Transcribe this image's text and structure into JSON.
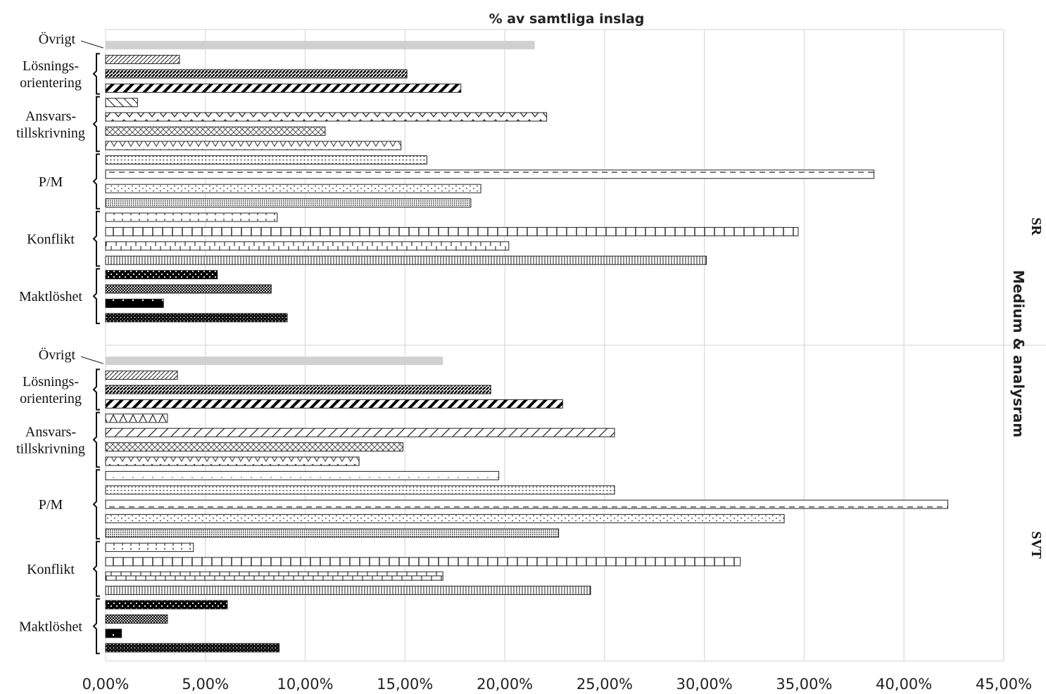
{
  "chart_data": {
    "type": "bar",
    "orientation": "horizontal",
    "title": "% av samtliga inslag",
    "xlim": [
      0,
      45
    ],
    "xticks": [
      "0,00%",
      "5,00%",
      "10,00%",
      "15,00%",
      "20,00%",
      "25,00%",
      "30,00%",
      "35,00%",
      "40,00%",
      "45,00%"
    ],
    "grid": true,
    "axis_title": "Medium & analysram",
    "groups": [
      {
        "label": "SR",
        "categories": [
          {
            "label": "Övrigt",
            "values": [
              21.5
            ],
            "patterns": [
              "solid-gray"
            ]
          },
          {
            "label": "Lösnings-orientering",
            "lines": [
              "Lösnings-",
              "orientering"
            ],
            "values": [
              3.7,
              15.1,
              17.8
            ],
            "patterns": [
              "diag-light",
              "diag-dense",
              "diag-bold"
            ]
          },
          {
            "label": "Ansvars-tillskrivning",
            "lines": [
              "Ansvars-",
              "tillskrivning"
            ],
            "values": [
              1.6,
              22.1,
              11.0,
              14.8
            ],
            "patterns": [
              "diag-sparse",
              "zigzag",
              "weave",
              "zigzag-small"
            ]
          },
          {
            "label": "P/M",
            "lines": [
              "P/M"
            ],
            "values": [
              16.1,
              38.5,
              18.8,
              18.3
            ],
            "patterns": [
              "dots-dense",
              "dashes",
              "dots-sparse",
              "dots-grid"
            ]
          },
          {
            "label": "Konflikt",
            "lines": [
              "Konflikt"
            ],
            "values": [
              8.6,
              34.7,
              20.2,
              30.1
            ],
            "patterns": [
              "dashed-grid",
              "vlines-wide",
              "brick",
              "vlines-dense"
            ]
          },
          {
            "label": "Maktlöshet",
            "lines": [
              "Maktlöshet"
            ],
            "values": [
              5.6,
              8.3,
              2.9,
              9.1
            ],
            "patterns": [
              "dark-dots",
              "dark-checker",
              "dark-sparse",
              "dark-dense"
            ]
          }
        ]
      },
      {
        "label": "SVT",
        "categories": [
          {
            "label": "Övrigt",
            "values": [
              16.9
            ],
            "patterns": [
              "solid-gray"
            ]
          },
          {
            "label": "Lösnings-orientering",
            "lines": [
              "Lösnings-",
              "orientering"
            ],
            "values": [
              3.6,
              19.3,
              22.9
            ],
            "patterns": [
              "diag-light",
              "diag-dense",
              "diag-bold"
            ]
          },
          {
            "label": "Ansvars-tillskrivning",
            "lines": [
              "Ansvars-",
              "tillskrivning"
            ],
            "values": [
              3.1,
              25.5,
              14.9,
              12.7
            ],
            "patterns": [
              "triangles",
              "diag-slash",
              "weave",
              "zigzag-small"
            ]
          },
          {
            "label": "P/M",
            "lines": [
              "P/M"
            ],
            "values": [
              19.7,
              25.5,
              42.2,
              34.0,
              22.7
            ],
            "patterns": [
              "dots-tiny",
              "dots-dense",
              "dashes",
              "dots-sparse",
              "dots-grid"
            ]
          },
          {
            "label": "Konflikt",
            "lines": [
              "Konflikt"
            ],
            "values": [
              4.4,
              31.8,
              16.9,
              24.3
            ],
            "patterns": [
              "dashed-grid",
              "vlines-wide",
              "brick",
              "vlines-dense"
            ]
          },
          {
            "label": "Maktlöshet",
            "lines": [
              "Maktlöshet"
            ],
            "values": [
              6.1,
              3.1,
              0.8,
              8.7
            ],
            "patterns": [
              "dark-dots",
              "dark-checker",
              "dark-sparse",
              "dark-dense"
            ]
          }
        ]
      }
    ]
  }
}
